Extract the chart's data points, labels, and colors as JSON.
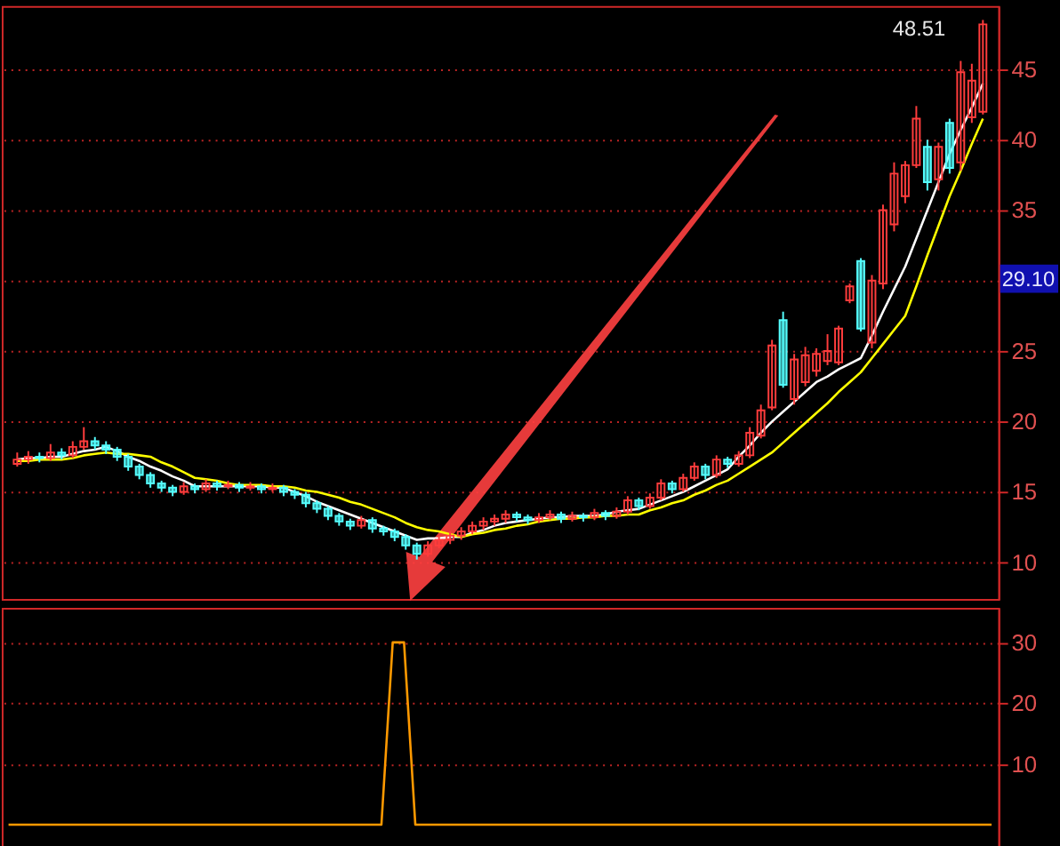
{
  "chart_data": [
    {
      "type": "candlestick",
      "categories": [
        null,
        null,
        null,
        null,
        null,
        null,
        null,
        null,
        null,
        null,
        null,
        null,
        null,
        null,
        null,
        null,
        null,
        null,
        null,
        null,
        null,
        null,
        null,
        null,
        null,
        null,
        null,
        null,
        null,
        null,
        null,
        null,
        null,
        null,
        null,
        null,
        null,
        null,
        null,
        null,
        null,
        null,
        null,
        null,
        null,
        null,
        null,
        null,
        null,
        null,
        null,
        null,
        null,
        null,
        null,
        null,
        null,
        null,
        null,
        null,
        null,
        null,
        null,
        null,
        null,
        null,
        null,
        null,
        null,
        null,
        null,
        null,
        null,
        null,
        null,
        null,
        null,
        null,
        null,
        null,
        null,
        null,
        null,
        null,
        null,
        null,
        null,
        null
      ],
      "ohlc": [
        [
          17.0,
          17.8,
          16.8,
          17.3
        ],
        [
          17.3,
          17.9,
          17.0,
          17.5
        ],
        [
          17.5,
          17.8,
          17.1,
          17.4
        ],
        [
          17.4,
          18.4,
          17.2,
          17.8
        ],
        [
          17.8,
          18.1,
          17.3,
          17.6
        ],
        [
          17.6,
          18.6,
          17.4,
          18.2
        ],
        [
          18.2,
          19.6,
          18.0,
          18.6
        ],
        [
          18.6,
          18.9,
          18.0,
          18.3
        ],
        [
          18.3,
          18.6,
          17.7,
          18.0
        ],
        [
          18.0,
          18.2,
          17.2,
          17.5
        ],
        [
          17.5,
          17.7,
          16.5,
          16.8
        ],
        [
          16.8,
          17.0,
          15.9,
          16.2
        ],
        [
          16.2,
          16.4,
          15.3,
          15.6
        ],
        [
          15.6,
          15.8,
          15.0,
          15.3
        ],
        [
          15.3,
          15.5,
          14.7,
          15.0
        ],
        [
          15.0,
          15.7,
          14.8,
          15.4
        ],
        [
          15.4,
          15.6,
          14.9,
          15.2
        ],
        [
          15.2,
          15.9,
          15.0,
          15.6
        ],
        [
          15.6,
          15.8,
          15.1,
          15.4
        ],
        [
          15.4,
          15.8,
          15.2,
          15.5
        ],
        [
          15.5,
          15.7,
          15.0,
          15.3
        ],
        [
          15.3,
          15.7,
          15.1,
          15.4
        ],
        [
          15.4,
          15.6,
          14.9,
          15.2
        ],
        [
          15.2,
          15.6,
          15.0,
          15.3
        ],
        [
          15.3,
          15.5,
          14.7,
          15.0
        ],
        [
          15.0,
          15.2,
          14.5,
          14.8
        ],
        [
          14.8,
          15.0,
          13.9,
          14.2
        ],
        [
          14.2,
          14.4,
          13.5,
          13.8
        ],
        [
          13.8,
          14.0,
          13.0,
          13.3
        ],
        [
          13.3,
          13.5,
          12.6,
          12.9
        ],
        [
          12.9,
          13.1,
          12.3,
          12.6
        ],
        [
          12.6,
          13.3,
          12.4,
          13.0
        ],
        [
          13.0,
          13.2,
          12.1,
          12.4
        ],
        [
          12.4,
          12.6,
          11.9,
          12.2
        ],
        [
          12.2,
          12.4,
          11.5,
          11.8
        ],
        [
          11.8,
          12.0,
          10.9,
          11.2
        ],
        [
          11.2,
          11.4,
          10.2,
          10.6
        ],
        [
          10.6,
          11.5,
          10.4,
          11.2
        ],
        [
          11.2,
          11.9,
          11.0,
          11.6
        ],
        [
          11.6,
          12.2,
          11.3,
          11.9
        ],
        [
          11.9,
          12.5,
          11.6,
          12.2
        ],
        [
          12.2,
          12.9,
          12.0,
          12.6
        ],
        [
          12.6,
          13.2,
          12.3,
          12.9
        ],
        [
          12.9,
          13.4,
          12.6,
          13.1
        ],
        [
          13.1,
          13.7,
          12.8,
          13.4
        ],
        [
          13.4,
          13.6,
          12.9,
          13.2
        ],
        [
          13.2,
          13.4,
          12.7,
          13.0
        ],
        [
          13.0,
          13.5,
          12.8,
          13.2
        ],
        [
          13.2,
          13.7,
          13.0,
          13.4
        ],
        [
          13.4,
          13.6,
          12.8,
          13.1
        ],
        [
          13.1,
          13.6,
          12.9,
          13.3
        ],
        [
          13.3,
          13.5,
          12.9,
          13.2
        ],
        [
          13.2,
          13.8,
          13.0,
          13.5
        ],
        [
          13.5,
          13.7,
          13.0,
          13.3
        ],
        [
          13.3,
          13.9,
          13.1,
          13.6
        ],
        [
          13.6,
          14.7,
          13.4,
          14.4
        ],
        [
          14.4,
          14.6,
          13.7,
          14.0
        ],
        [
          14.0,
          14.9,
          13.8,
          14.6
        ],
        [
          14.6,
          15.9,
          14.4,
          15.6
        ],
        [
          15.6,
          15.8,
          14.9,
          15.2
        ],
        [
          15.2,
          16.3,
          15.0,
          16.0
        ],
        [
          16.0,
          17.1,
          15.8,
          16.8
        ],
        [
          16.8,
          17.0,
          15.9,
          16.2
        ],
        [
          16.2,
          17.6,
          16.0,
          17.3
        ],
        [
          17.3,
          17.5,
          16.7,
          17.0
        ],
        [
          17.0,
          17.9,
          16.8,
          17.6
        ],
        [
          17.6,
          19.6,
          17.4,
          19.2
        ],
        [
          19.0,
          21.2,
          18.8,
          20.8
        ],
        [
          21.0,
          25.8,
          20.8,
          25.4
        ],
        [
          27.2,
          27.8,
          22.4,
          22.6
        ],
        [
          21.6,
          24.8,
          21.2,
          24.4
        ],
        [
          22.8,
          25.3,
          22.5,
          24.7
        ],
        [
          23.6,
          25.2,
          23.2,
          24.8
        ],
        [
          24.3,
          26.2,
          24.0,
          25.0
        ],
        [
          24.2,
          26.8,
          24.0,
          26.6
        ],
        [
          28.6,
          29.8,
          28.4,
          29.6
        ],
        [
          31.4,
          31.6,
          26.4,
          26.6
        ],
        [
          25.6,
          30.4,
          25.2,
          30.0
        ],
        [
          29.8,
          35.4,
          29.4,
          35.0
        ],
        [
          34.0,
          38.4,
          33.5,
          37.6
        ],
        [
          36.0,
          38.5,
          35.5,
          38.2
        ],
        [
          38.2,
          42.4,
          38.0,
          41.5
        ],
        [
          39.5,
          40.0,
          36.4,
          37.0
        ],
        [
          37.2,
          39.8,
          36.4,
          39.5
        ],
        [
          41.2,
          41.5,
          37.6,
          38.0
        ],
        [
          38.4,
          45.6,
          37.8,
          44.8
        ],
        [
          41.6,
          45.4,
          41.2,
          44.2
        ],
        [
          42.0,
          48.51,
          41.8,
          48.2
        ]
      ],
      "series": [
        {
          "type": "line",
          "color": "#ffffff",
          "values": [
            17.3,
            17.4,
            17.4,
            17.5,
            17.5,
            17.7,
            17.9,
            18.0,
            18.2,
            17.9,
            17.5,
            17.2,
            16.8,
            16.5,
            16.1,
            15.8,
            15.4,
            15.4,
            15.4,
            15.4,
            15.4,
            15.4,
            15.4,
            15.3,
            15.3,
            15.0,
            14.7,
            14.3,
            14.0,
            13.7,
            13.4,
            13.1,
            12.8,
            12.5,
            12.2,
            11.9,
            11.6,
            11.7,
            11.7,
            11.8,
            11.8,
            12.1,
            12.3,
            12.6,
            12.8,
            12.9,
            13.0,
            13.1,
            13.2,
            13.2,
            13.3,
            13.3,
            13.3,
            13.4,
            13.6,
            13.7,
            13.8,
            14.1,
            14.4,
            14.7,
            15.0,
            15.4,
            15.8,
            16.2,
            16.6,
            17.5,
            18.3,
            19.2,
            20.0,
            20.7,
            21.4,
            22.1,
            22.8,
            23.2,
            23.7,
            24.1,
            24.5,
            26.1,
            27.8,
            29.4,
            31.0,
            33.0,
            35.0,
            37.0,
            39.0,
            40.7,
            42.3,
            44.0
          ]
        },
        {
          "type": "line",
          "color": "#ffff00",
          "values": [
            17.2,
            17.2,
            17.3,
            17.3,
            17.3,
            17.4,
            17.6,
            17.7,
            17.8,
            17.7,
            17.7,
            17.6,
            17.5,
            17.1,
            16.8,
            16.4,
            16.0,
            15.9,
            15.8,
            15.6,
            15.5,
            15.5,
            15.5,
            15.4,
            15.4,
            15.3,
            15.1,
            15.0,
            14.8,
            14.6,
            14.3,
            14.1,
            13.8,
            13.5,
            13.2,
            12.8,
            12.5,
            12.3,
            12.2,
            12.0,
            11.8,
            12.0,
            12.1,
            12.3,
            12.4,
            12.6,
            12.7,
            12.9,
            13.0,
            13.1,
            13.1,
            13.2,
            13.2,
            13.3,
            13.3,
            13.4,
            13.4,
            13.7,
            13.9,
            14.2,
            14.4,
            14.8,
            15.1,
            15.5,
            15.8,
            16.3,
            16.8,
            17.3,
            17.8,
            18.5,
            19.2,
            19.9,
            20.6,
            21.3,
            22.1,
            22.8,
            23.5,
            24.5,
            25.5,
            26.5,
            27.5,
            29.6,
            31.8,
            33.9,
            36.0,
            37.8,
            39.7,
            41.5
          ]
        }
      ],
      "ylim": [
        7.4,
        49.5
      ],
      "yticks": [
        10,
        15,
        20,
        25,
        {
          "value": 30,
          "label": null
        },
        35,
        40,
        45
      ],
      "grid": "y",
      "tick_labels": "y",
      "annotations": [
        "48.51",
        "29.10"
      ]
    },
    {
      "type": "line",
      "categories": [
        null,
        null,
        null,
        null,
        null,
        null,
        null,
        null,
        null,
        null,
        null,
        null,
        null,
        null,
        null,
        null,
        null,
        null,
        null,
        null,
        null,
        null,
        null,
        null,
        null,
        null,
        null,
        null,
        null,
        null,
        null,
        null,
        null,
        null,
        null,
        null,
        null,
        null,
        null,
        null,
        null,
        null,
        null,
        null,
        null,
        null,
        null,
        null,
        null,
        null,
        null,
        null,
        null,
        null,
        null,
        null,
        null,
        null,
        null,
        null,
        null,
        null,
        null,
        null,
        null,
        null,
        null,
        null,
        null,
        null,
        null,
        null,
        null,
        null,
        null,
        null,
        null,
        null,
        null,
        null,
        null,
        null,
        null,
        null,
        null,
        null,
        null,
        null
      ],
      "series": [
        {
          "color": "#ff9900",
          "values": [
            0,
            0,
            0,
            0,
            0,
            0,
            0,
            0,
            0,
            0,
            0,
            0,
            0,
            0,
            0,
            0,
            0,
            0,
            0,
            0,
            0,
            0,
            0,
            0,
            0,
            0,
            0,
            0,
            0,
            0,
            0,
            0,
            0,
            0,
            30,
            30,
            0,
            0,
            0,
            0,
            0,
            0,
            0,
            0,
            0,
            0,
            0,
            0,
            0,
            0,
            0,
            0,
            0,
            0,
            0,
            0,
            0,
            0,
            0,
            0,
            0,
            0,
            0,
            0,
            0,
            0,
            0,
            0,
            0,
            0,
            0,
            0,
            0,
            0,
            0,
            0,
            0,
            0,
            0,
            0,
            0,
            0,
            0,
            0,
            0,
            0,
            0,
            0
          ]
        }
      ],
      "ylim": [
        -3.7,
        35.7
      ],
      "yticks": [
        10,
        20,
        30
      ],
      "grid": "y",
      "tick_labels": "y"
    }
  ]
}
